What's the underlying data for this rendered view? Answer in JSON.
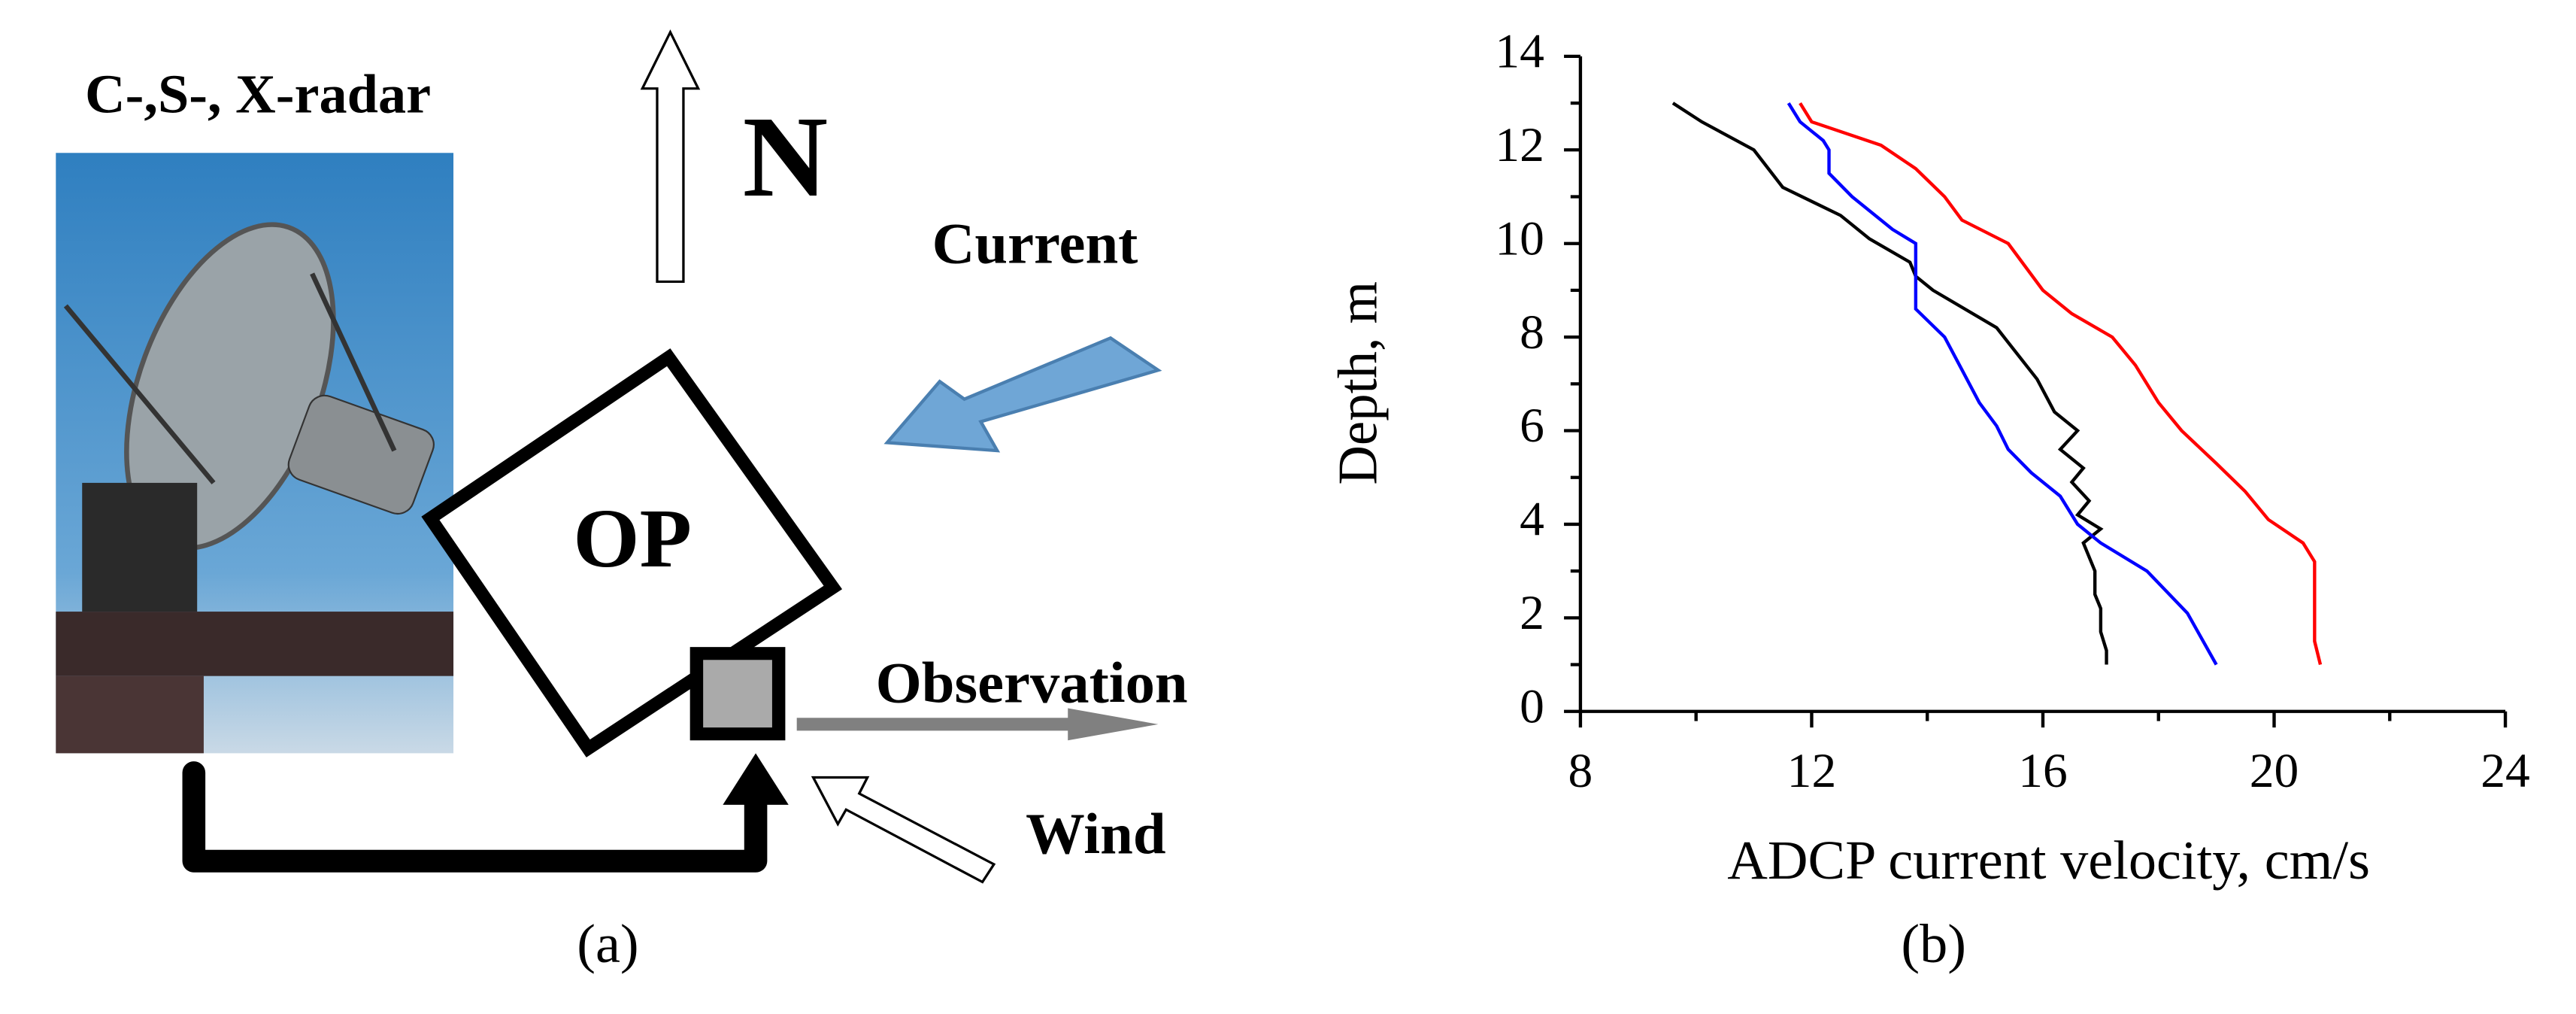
{
  "diagram": {
    "radar_label": "C-,S-, X-radar",
    "north_label": "N",
    "current_label": "Current",
    "platform_label": "OP",
    "observation_label": "Observation",
    "wind_label": "Wind",
    "caption": "(a)"
  },
  "chart_data": {
    "type": "line",
    "caption": "(b)",
    "x_label": "ADCP current velocity, cm/s",
    "y_label": "Depth, m",
    "xlim": [
      8,
      24
    ],
    "xticks": [
      8,
      12,
      16,
      20,
      24
    ],
    "ylim": [
      0,
      14
    ],
    "yticks": [
      0,
      2,
      4,
      6,
      8,
      10,
      12,
      14
    ],
    "series": [
      {
        "color": "#000000",
        "x": [
          9.6,
          10.1,
          11.0,
          11.5,
          12.5,
          13.0,
          13.7,
          13.8,
          14.1,
          15.2,
          15.9,
          16.2,
          16.6,
          16.3,
          16.7,
          16.5,
          16.8,
          16.6,
          17.0,
          16.7,
          16.9,
          16.9,
          17.0,
          17.0,
          17.1,
          17.1
        ],
        "values": [
          13.0,
          12.6,
          12.0,
          11.2,
          10.6,
          10.1,
          9.6,
          9.3,
          9.0,
          8.2,
          7.1,
          6.4,
          6.0,
          5.6,
          5.2,
          4.9,
          4.5,
          4.2,
          3.9,
          3.6,
          3.0,
          2.5,
          2.2,
          1.7,
          1.3,
          1.0
        ]
      },
      {
        "color": "#0000ff",
        "x": [
          11.6,
          11.8,
          12.2,
          12.3,
          12.3,
          12.7,
          13.4,
          13.8,
          13.8,
          13.8,
          13.8,
          14.3,
          14.6,
          14.9,
          15.2,
          15.4,
          15.8,
          16.3,
          16.6,
          17.0,
          17.8,
          18.5,
          19.0
        ],
        "values": [
          13.0,
          12.6,
          12.2,
          12.0,
          11.5,
          11.0,
          10.3,
          10.0,
          9.5,
          9.0,
          8.6,
          8.0,
          7.3,
          6.6,
          6.1,
          5.6,
          5.1,
          4.6,
          4.0,
          3.6,
          3.0,
          2.1,
          1.0
        ]
      },
      {
        "color": "#ff0000",
        "x": [
          11.8,
          12.0,
          13.2,
          13.8,
          14.3,
          14.6,
          15.4,
          16.0,
          16.5,
          17.2,
          17.6,
          18.0,
          18.4,
          19.0,
          19.5,
          19.9,
          20.5,
          20.7,
          20.7,
          20.7,
          20.7,
          20.8
        ],
        "values": [
          13.0,
          12.6,
          12.1,
          11.6,
          11.0,
          10.5,
          10.0,
          9.0,
          8.5,
          8.0,
          7.4,
          6.6,
          6.0,
          5.3,
          4.7,
          4.1,
          3.6,
          3.2,
          2.6,
          2.0,
          1.5,
          1.0
        ]
      }
    ]
  }
}
